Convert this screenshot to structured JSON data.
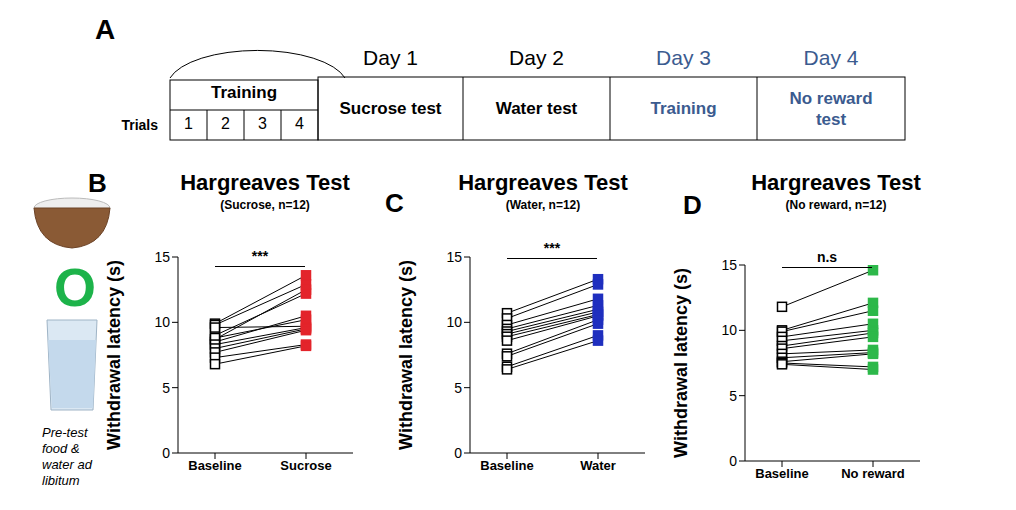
{
  "timeline": {
    "label": "A",
    "training_group": "Training",
    "trials_label": "Trials",
    "trials": [
      1,
      2,
      3,
      4
    ],
    "days": [
      {
        "day": "Day 1",
        "session": "Sucrose test",
        "color": "#000000"
      },
      {
        "day": "Day 2",
        "session": "Water test",
        "color": "#000000"
      },
      {
        "day": "Day 3",
        "session": "Training",
        "color": "#3b5b8f"
      },
      {
        "day": "Day 4",
        "session": "No reward test",
        "color": "#3b5b8f"
      }
    ]
  },
  "pretest": {
    "symbol": "O",
    "symbol_color": "#1db34a",
    "caption": "Pre-test food & water ad libitum"
  },
  "chart_data": [
    {
      "type": "line",
      "panel": "B",
      "title": "Hargreaves Test",
      "subtitle": "(Sucrose, n=12)",
      "y_label": "Withdrawal latency (s)",
      "categories": [
        "Baseline",
        "Sucrose"
      ],
      "colors": [
        "#000000",
        "#e3242b"
      ],
      "marker": "square",
      "ylim": [
        0,
        15
      ],
      "yticks": [
        0,
        5,
        10,
        15
      ],
      "annotation": "***",
      "series": [
        {
          "values": [
            9.9,
            13.6
          ]
        },
        {
          "values": [
            9.8,
            12.9
          ]
        },
        {
          "values": [
            8.7,
            12.5
          ]
        },
        {
          "values": [
            9.0,
            12.2
          ]
        },
        {
          "values": [
            8.5,
            10.5
          ]
        },
        {
          "values": [
            8.8,
            10.2
          ]
        },
        {
          "values": [
            9.6,
            9.7
          ]
        },
        {
          "values": [
            8.3,
            9.6
          ]
        },
        {
          "values": [
            8.0,
            9.5
          ]
        },
        {
          "values": [
            7.7,
            9.4
          ]
        },
        {
          "values": [
            7.3,
            8.3
          ]
        },
        {
          "values": [
            6.8,
            8.2
          ]
        }
      ]
    },
    {
      "type": "line",
      "panel": "C",
      "title": "Hargreaves Test",
      "subtitle": "(Water, n=12)",
      "y_label": "Withdrawal latency (s)",
      "categories": [
        "Baseline",
        "Water"
      ],
      "colors": [
        "#000000",
        "#1f2fbf"
      ],
      "marker": "square",
      "ylim": [
        0,
        15
      ],
      "yticks": [
        0,
        5,
        10,
        15
      ],
      "annotation": "***",
      "series": [
        {
          "values": [
            10.7,
            13.3
          ]
        },
        {
          "values": [
            10.3,
            12.9
          ]
        },
        {
          "values": [
            9.8,
            11.8
          ]
        },
        {
          "values": [
            9.5,
            11.3
          ]
        },
        {
          "values": [
            9.3,
            11.0
          ]
        },
        {
          "values": [
            9.1,
            10.8
          ]
        },
        {
          "values": [
            8.9,
            10.6
          ]
        },
        {
          "values": [
            8.6,
            10.5
          ]
        },
        {
          "values": [
            7.6,
            10.2
          ]
        },
        {
          "values": [
            7.4,
            9.9
          ]
        },
        {
          "values": [
            6.6,
            9.0
          ]
        },
        {
          "values": [
            6.4,
            8.6
          ]
        }
      ]
    },
    {
      "type": "line",
      "panel": "D",
      "title": "Hargreaves Test",
      "subtitle": "(No reward, n=12)",
      "y_label": "Withdrawal latency (s)",
      "categories": [
        "Baseline",
        "No reward"
      ],
      "colors": [
        "#000000",
        "#2db84a"
      ],
      "marker": "square",
      "ylim": [
        0,
        15
      ],
      "yticks": [
        0,
        5,
        10,
        15
      ],
      "annotation": "n.s",
      "series": [
        {
          "values": [
            11.8,
            14.6
          ]
        },
        {
          "values": [
            10.0,
            12.1
          ]
        },
        {
          "values": [
            9.9,
            11.5
          ]
        },
        {
          "values": [
            9.5,
            10.5
          ]
        },
        {
          "values": [
            9.2,
            10.0
          ]
        },
        {
          "values": [
            8.8,
            9.8
          ]
        },
        {
          "values": [
            8.6,
            9.5
          ]
        },
        {
          "values": [
            8.2,
            8.5
          ]
        },
        {
          "values": [
            7.9,
            8.3
          ]
        },
        {
          "values": [
            7.6,
            8.2
          ]
        },
        {
          "values": [
            7.5,
            7.2
          ]
        },
        {
          "values": [
            7.4,
            7.0
          ]
        }
      ]
    }
  ]
}
